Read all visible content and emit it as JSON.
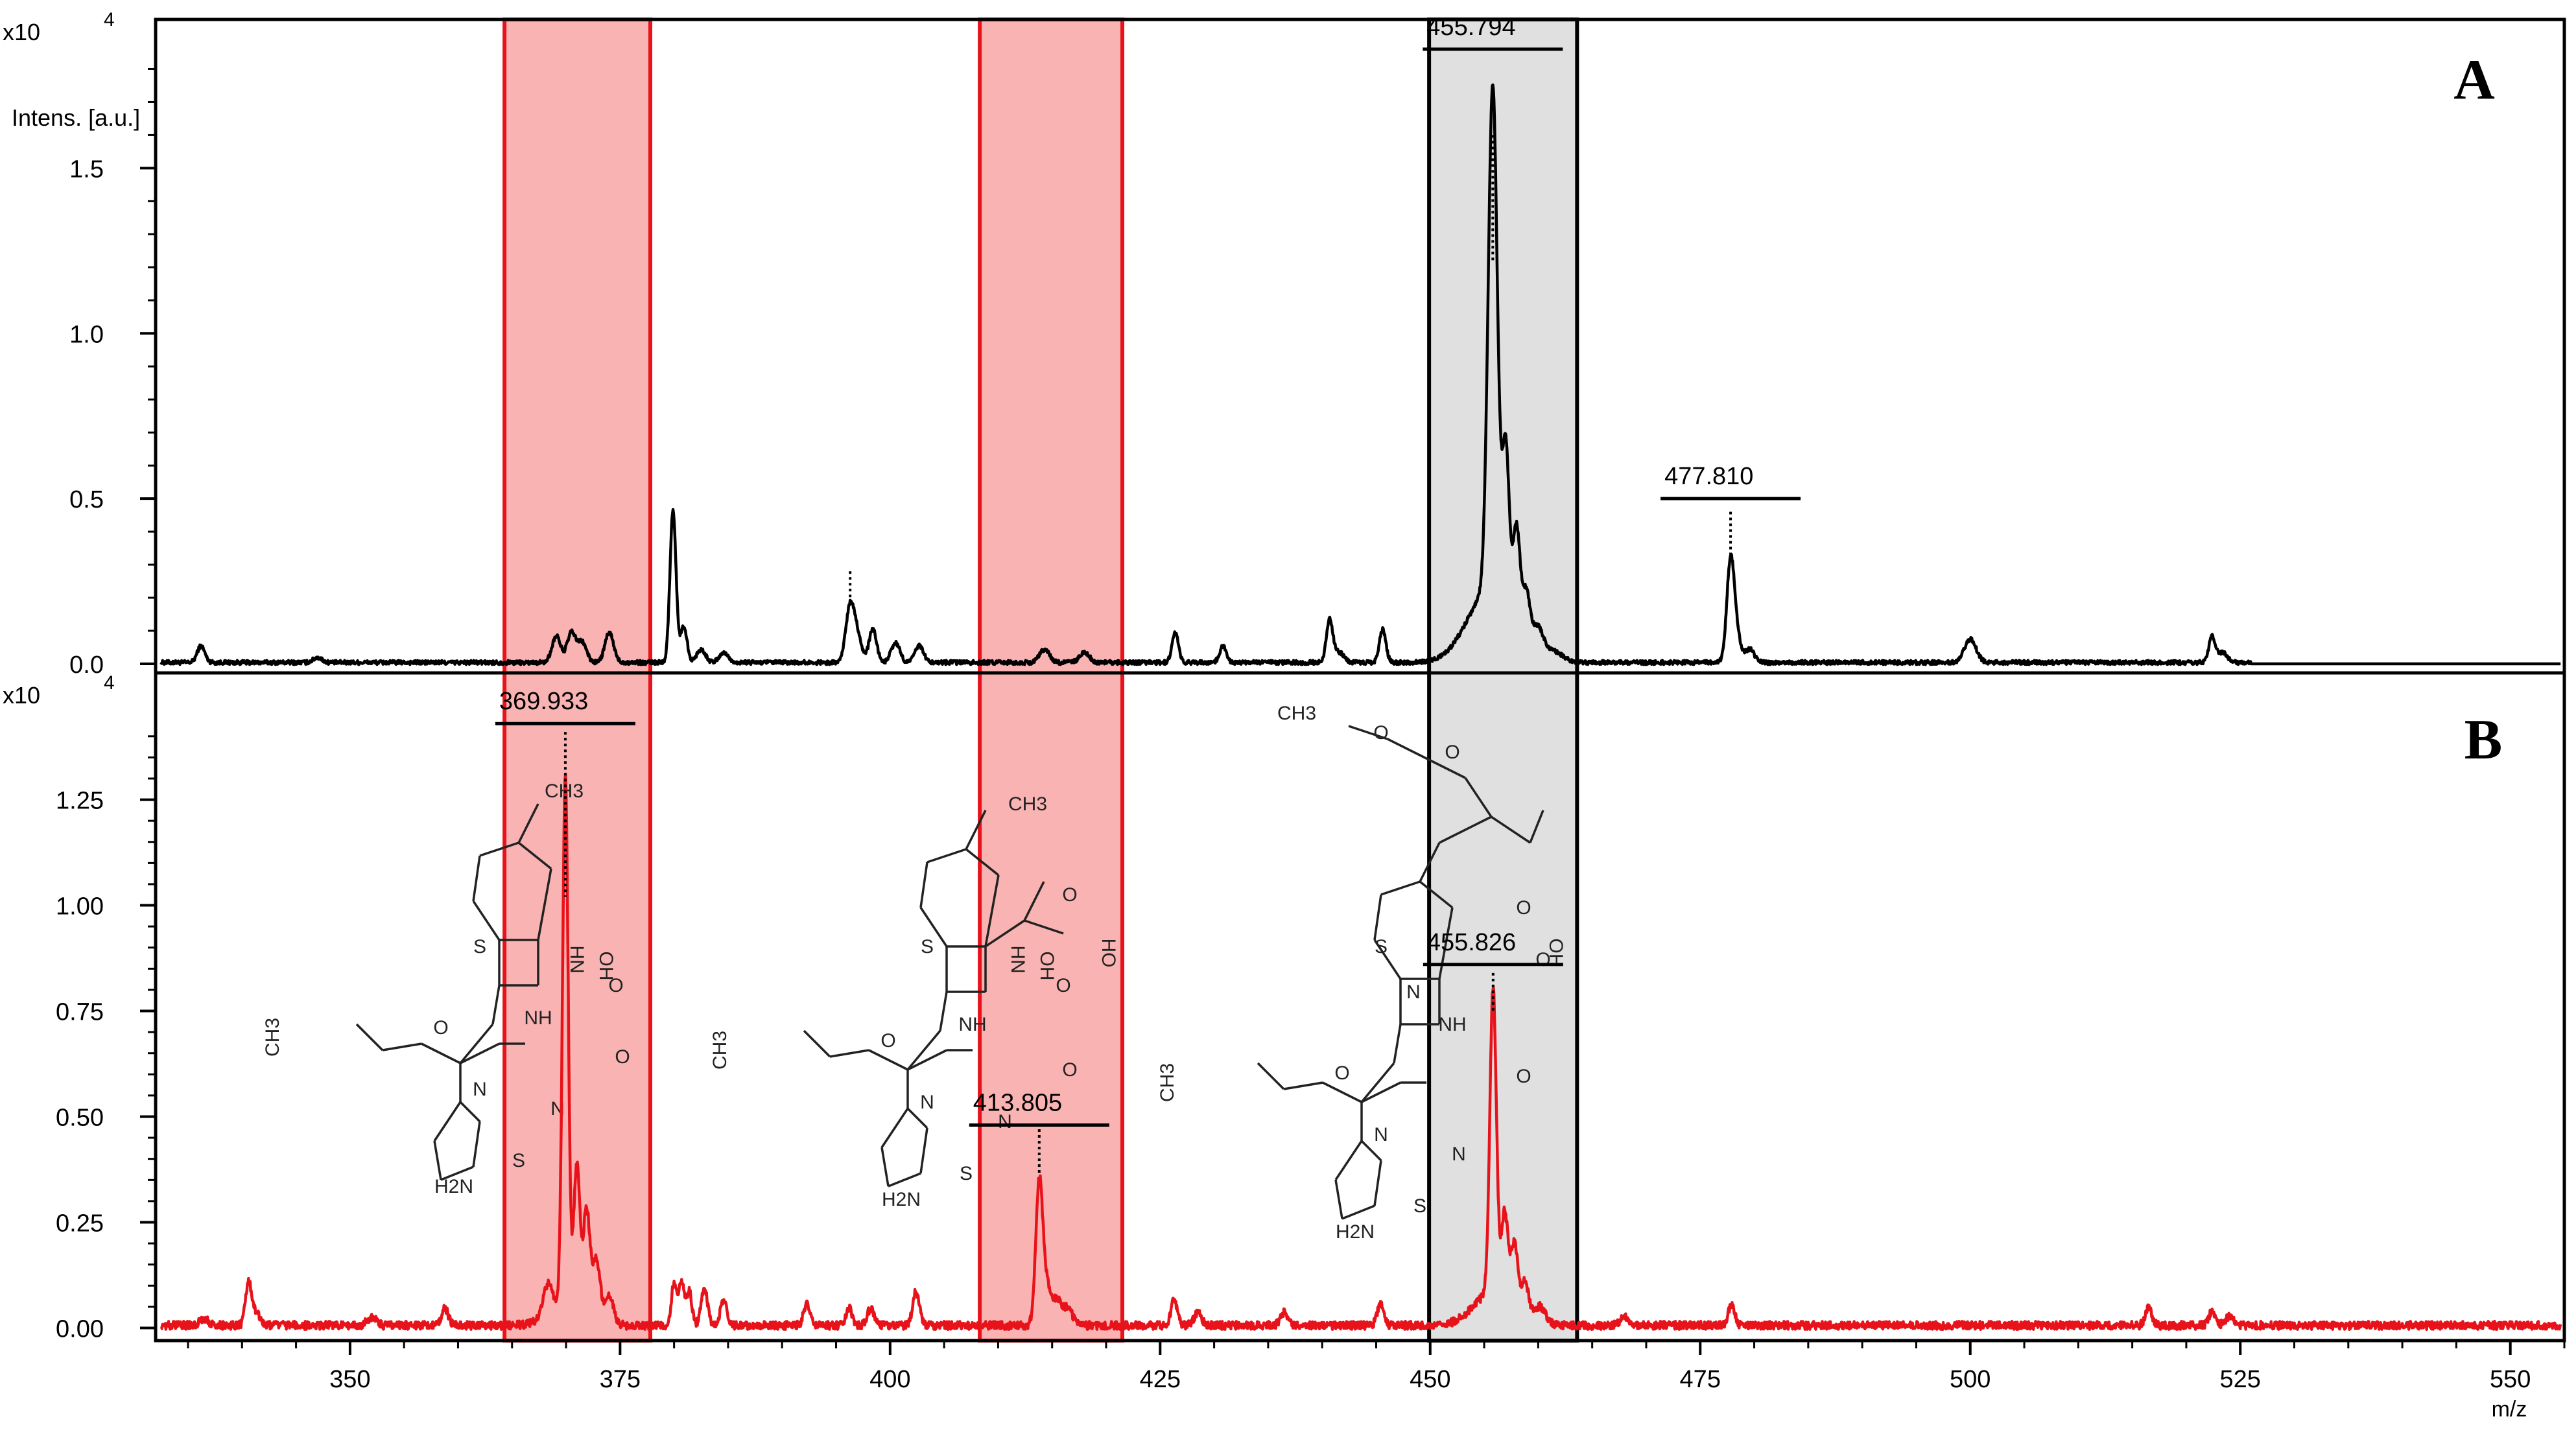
{
  "colors": {
    "spectrum_a": "#000000",
    "spectrum_b": "#e8131a",
    "red_band_fill": "#f9b3b3",
    "red_band_stroke": "#e8131a",
    "gray_band_fill": "#e0e0e0",
    "gray_band_stroke": "#000000",
    "structure": "#222222"
  },
  "chart_data": [
    {
      "id": "A",
      "type": "line",
      "panel_label": "A",
      "multiplier_label": "x10",
      "multiplier_exp": "4",
      "ylabel": "Intens. [a.u.]",
      "xlim": [
        332,
        555
      ],
      "ylim": [
        0,
        1.95
      ],
      "yticks": [
        0.0,
        0.5,
        1.0,
        1.5
      ],
      "ytick_labels": [
        "0.0",
        "0.5",
        "1.0",
        "1.5"
      ],
      "peaks": [
        {
          "x": 336.2,
          "y": 0.05,
          "w": 0.35
        },
        {
          "x": 347.0,
          "y": 0.015,
          "w": 0.4
        },
        {
          "x": 369.1,
          "y": 0.08,
          "w": 0.4
        },
        {
          "x": 370.5,
          "y": 0.09,
          "w": 0.4
        },
        {
          "x": 371.5,
          "y": 0.06,
          "w": 0.4
        },
        {
          "x": 374.0,
          "y": 0.09,
          "w": 0.4
        },
        {
          "x": 379.9,
          "y": 0.46,
          "w": 0.28
        },
        {
          "x": 380.9,
          "y": 0.11,
          "w": 0.3
        },
        {
          "x": 382.5,
          "y": 0.04,
          "w": 0.4
        },
        {
          "x": 384.6,
          "y": 0.03,
          "w": 0.4
        },
        {
          "x": 396.3,
          "y": 0.17,
          "w": 0.4
        },
        {
          "x": 397.0,
          "y": 0.07,
          "w": 0.4
        },
        {
          "x": 398.4,
          "y": 0.1,
          "w": 0.35
        },
        {
          "x": 400.5,
          "y": 0.06,
          "w": 0.4
        },
        {
          "x": 402.7,
          "y": 0.05,
          "w": 0.4
        },
        {
          "x": 414.3,
          "y": 0.04,
          "w": 0.45
        },
        {
          "x": 418.0,
          "y": 0.03,
          "w": 0.45
        },
        {
          "x": 426.4,
          "y": 0.09,
          "w": 0.3
        },
        {
          "x": 430.8,
          "y": 0.05,
          "w": 0.3
        },
        {
          "x": 440.7,
          "y": 0.13,
          "w": 0.3
        },
        {
          "x": 441.6,
          "y": 0.03,
          "w": 0.4
        },
        {
          "x": 445.6,
          "y": 0.1,
          "w": 0.3
        },
        {
          "x": 455.794,
          "y": 1.53,
          "w": 0.42
        },
        {
          "x": 455.6,
          "y": 0.22,
          "w": 2.1
        },
        {
          "x": 457.0,
          "y": 0.48,
          "w": 0.32
        },
        {
          "x": 458.0,
          "y": 0.3,
          "w": 0.32
        },
        {
          "x": 458.9,
          "y": 0.15,
          "w": 0.35
        },
        {
          "x": 460.0,
          "y": 0.08,
          "w": 0.5
        },
        {
          "x": 461.5,
          "y": 0.03,
          "w": 0.8
        },
        {
          "x": 477.81,
          "y": 0.3,
          "w": 0.35
        },
        {
          "x": 478.4,
          "y": 0.07,
          "w": 0.4
        },
        {
          "x": 479.6,
          "y": 0.04,
          "w": 0.4
        },
        {
          "x": 500.0,
          "y": 0.07,
          "w": 0.55
        },
        {
          "x": 522.4,
          "y": 0.08,
          "w": 0.3
        },
        {
          "x": 523.4,
          "y": 0.03,
          "w": 0.4
        }
      ],
      "noise": 0.008,
      "noise_end": 526,
      "peak_labels": [
        {
          "x": 455.794,
          "text": "455.794",
          "y_label": 1.86,
          "y_top": 1.6,
          "y_bottom": 1.22
        },
        {
          "x": 477.81,
          "text": "477.810",
          "y_label": 0.5,
          "y_top": 0.46,
          "y_bottom": 0.33
        }
      ],
      "unlabeled_markers": [
        {
          "x": 396.3,
          "y_top": 0.28,
          "y_bottom": 0.19
        }
      ]
    },
    {
      "id": "B",
      "type": "line",
      "panel_label": "B",
      "multiplier_label": "x10",
      "multiplier_exp": "4",
      "xlabel": "m/z",
      "xlim": [
        332,
        555
      ],
      "ylim": [
        -0.03,
        1.55
      ],
      "xticks": [
        350,
        375,
        400,
        425,
        450,
        475,
        500,
        525,
        550
      ],
      "xtick_labels": [
        "350",
        "375",
        "400",
        "425",
        "450",
        "475",
        "500",
        "525",
        "550"
      ],
      "yticks": [
        0.0,
        0.25,
        0.5,
        0.75,
        1.0,
        1.25
      ],
      "ytick_labels": [
        "0.00",
        "0.25",
        "0.50",
        "0.75",
        "1.00",
        "1.25"
      ],
      "peaks": [
        {
          "x": 336.5,
          "y": 0.015,
          "w": 0.4
        },
        {
          "x": 340.6,
          "y": 0.1,
          "w": 0.28
        },
        {
          "x": 341.3,
          "y": 0.03,
          "w": 0.35
        },
        {
          "x": 352.0,
          "y": 0.02,
          "w": 0.4
        },
        {
          "x": 358.8,
          "y": 0.04,
          "w": 0.3
        },
        {
          "x": 368.3,
          "y": 0.07,
          "w": 0.4
        },
        {
          "x": 369.933,
          "y": 1.25,
          "w": 0.26
        },
        {
          "x": 370.2,
          "y": 0.06,
          "w": 1.6
        },
        {
          "x": 371.0,
          "y": 0.33,
          "w": 0.28
        },
        {
          "x": 371.9,
          "y": 0.24,
          "w": 0.3
        },
        {
          "x": 372.8,
          "y": 0.14,
          "w": 0.35
        },
        {
          "x": 374.0,
          "y": 0.07,
          "w": 0.4
        },
        {
          "x": 380.0,
          "y": 0.1,
          "w": 0.25
        },
        {
          "x": 380.7,
          "y": 0.1,
          "w": 0.25
        },
        {
          "x": 381.4,
          "y": 0.08,
          "w": 0.25
        },
        {
          "x": 382.8,
          "y": 0.09,
          "w": 0.3
        },
        {
          "x": 384.6,
          "y": 0.06,
          "w": 0.3
        },
        {
          "x": 392.3,
          "y": 0.05,
          "w": 0.3
        },
        {
          "x": 396.2,
          "y": 0.04,
          "w": 0.3
        },
        {
          "x": 398.2,
          "y": 0.04,
          "w": 0.3
        },
        {
          "x": 402.4,
          "y": 0.08,
          "w": 0.3
        },
        {
          "x": 413.805,
          "y": 0.33,
          "w": 0.32
        },
        {
          "x": 414.5,
          "y": 0.09,
          "w": 0.4
        },
        {
          "x": 415.5,
          "y": 0.06,
          "w": 0.4
        },
        {
          "x": 416.5,
          "y": 0.04,
          "w": 0.4
        },
        {
          "x": 426.3,
          "y": 0.06,
          "w": 0.3
        },
        {
          "x": 428.5,
          "y": 0.03,
          "w": 0.35
        },
        {
          "x": 436.5,
          "y": 0.03,
          "w": 0.35
        },
        {
          "x": 445.4,
          "y": 0.05,
          "w": 0.3
        },
        {
          "x": 455.826,
          "y": 0.72,
          "w": 0.3
        },
        {
          "x": 455.9,
          "y": 0.08,
          "w": 1.8
        },
        {
          "x": 456.9,
          "y": 0.2,
          "w": 0.3
        },
        {
          "x": 457.8,
          "y": 0.15,
          "w": 0.32
        },
        {
          "x": 458.8,
          "y": 0.08,
          "w": 0.35
        },
        {
          "x": 460.2,
          "y": 0.04,
          "w": 0.5
        },
        {
          "x": 468.0,
          "y": 0.02,
          "w": 0.4
        },
        {
          "x": 477.9,
          "y": 0.05,
          "w": 0.3
        },
        {
          "x": 516.5,
          "y": 0.04,
          "w": 0.3
        },
        {
          "x": 522.4,
          "y": 0.035,
          "w": 0.3
        },
        {
          "x": 524.0,
          "y": 0.02,
          "w": 0.4
        }
      ],
      "noise": 0.012,
      "noise_end": 555,
      "peak_labels": [
        {
          "x": 369.933,
          "text": "369.933",
          "y_label": 1.43,
          "y_top": 1.41,
          "y_bottom": 1.02
        },
        {
          "x": 413.805,
          "text": "413.805",
          "y_label": 0.48,
          "y_top": 0.47,
          "y_bottom": 0.36
        },
        {
          "x": 455.826,
          "text": "455.826",
          "y_label": 0.86,
          "y_top": 0.84,
          "y_bottom": 0.75
        }
      ]
    }
  ],
  "highlight_bands": [
    {
      "name": "band-369",
      "x_from": 364.3,
      "x_to": 377.8,
      "color": "red"
    },
    {
      "name": "band-414",
      "x_from": 408.3,
      "x_to": 421.5,
      "color": "red"
    },
    {
      "name": "band-456",
      "x_from": 449.9,
      "x_to": 463.6,
      "color": "gray"
    }
  ],
  "structures": [
    {
      "name": "structure-ceftizoxime-methyl",
      "labels": [
        "CH3",
        "S",
        "HN",
        "OH",
        "O",
        "NH",
        "O",
        "CH3",
        "O",
        "N",
        "N",
        "S",
        "H2N"
      ]
    },
    {
      "name": "structure-cephem-acid",
      "labels": [
        "CH3",
        "S",
        "HN",
        "OH",
        "O",
        "HO",
        "O",
        "NH",
        "O",
        "CH3",
        "O",
        "N",
        "N",
        "S",
        "H2N"
      ]
    },
    {
      "name": "structure-cefotaxime",
      "labels": [
        "CH3",
        "O",
        "O",
        "S",
        "N",
        "O",
        "OH",
        "O",
        "NH",
        "O",
        "CH3",
        "O",
        "N",
        "N",
        "S",
        "H2N"
      ]
    }
  ]
}
